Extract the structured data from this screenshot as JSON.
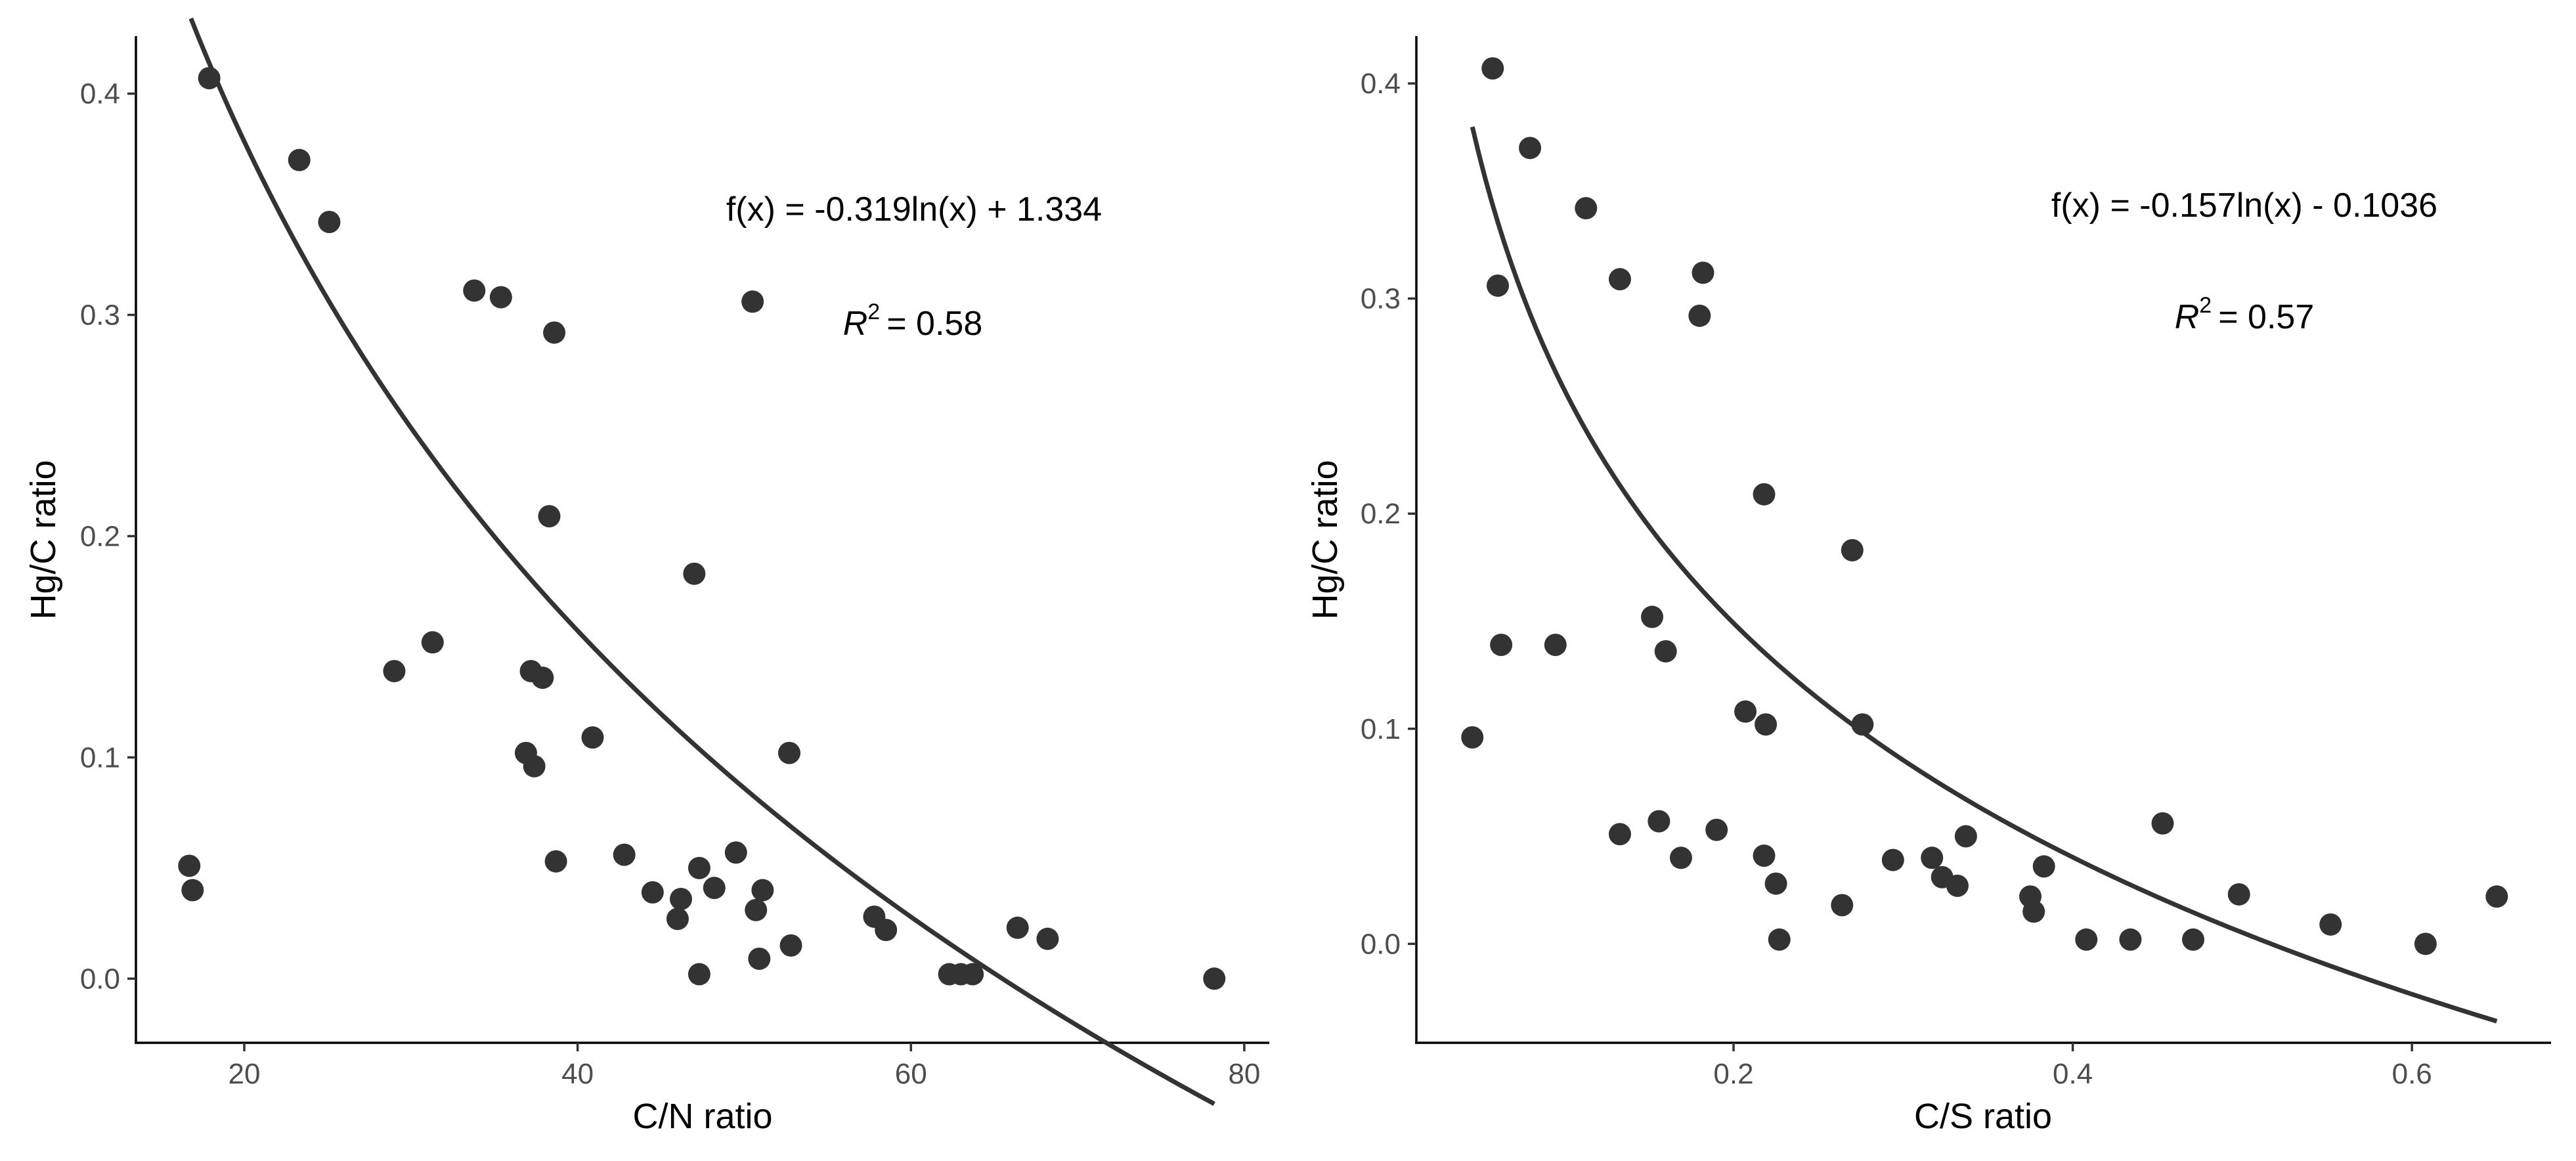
{
  "chart_data": [
    {
      "type": "scatter",
      "id": "cn",
      "xlabel": "C/N ratio",
      "ylabel": "Hg/C ratio",
      "xlim": [
        13.5,
        81.5
      ],
      "ylim": [
        -0.029,
        0.426
      ],
      "xticks": [
        20,
        40,
        60,
        80
      ],
      "yticks": [
        0.0,
        0.1,
        0.2,
        0.3,
        0.4
      ],
      "ytick_labels": [
        "0.0",
        "0.1",
        "0.2",
        "0.3",
        "0.4"
      ],
      "xtick_labels": [
        "20",
        "40",
        "60",
        "80"
      ],
      "equation": "f(x) = -0.319ln(x) + 1.334",
      "r2_label": "R",
      "r2_sup": "2",
      "r2_value": "= 0.58",
      "fit": {
        "a": -0.319,
        "b": 1.334,
        "xmin": 16.8,
        "xmax": 78.2
      },
      "points": [
        [
          17.9,
          0.407
        ],
        [
          23.3,
          0.37
        ],
        [
          25.1,
          0.342
        ],
        [
          33.8,
          0.311
        ],
        [
          35.4,
          0.308
        ],
        [
          38.6,
          0.292
        ],
        [
          50.5,
          0.306
        ],
        [
          38.3,
          0.209
        ],
        [
          47.0,
          0.183
        ],
        [
          29.0,
          0.139
        ],
        [
          31.3,
          0.152
        ],
        [
          37.2,
          0.139
        ],
        [
          37.9,
          0.136
        ],
        [
          36.9,
          0.102
        ],
        [
          37.4,
          0.096
        ],
        [
          40.9,
          0.109
        ],
        [
          52.7,
          0.102
        ],
        [
          16.7,
          0.051
        ],
        [
          16.9,
          0.04
        ],
        [
          38.7,
          0.053
        ],
        [
          42.8,
          0.056
        ],
        [
          44.5,
          0.039
        ],
        [
          46.0,
          0.027
        ],
        [
          46.2,
          0.036
        ],
        [
          47.3,
          0.05
        ],
        [
          48.2,
          0.041
        ],
        [
          49.5,
          0.057
        ],
        [
          50.7,
          0.031
        ],
        [
          51.1,
          0.04
        ],
        [
          52.8,
          0.015
        ],
        [
          47.3,
          0.002
        ],
        [
          50.9,
          0.009
        ],
        [
          57.8,
          0.028
        ],
        [
          58.5,
          0.022
        ],
        [
          62.3,
          0.002
        ],
        [
          63.0,
          0.002
        ],
        [
          63.7,
          0.002
        ],
        [
          66.4,
          0.023
        ],
        [
          68.2,
          0.018
        ],
        [
          78.2,
          0.0
        ]
      ]
    },
    {
      "type": "scatter",
      "id": "cs",
      "xlabel": "C/S ratio",
      "ylabel": "Hg/C ratio",
      "xlim": [
        0.013,
        0.682
      ],
      "ylim": [
        -0.046,
        0.422
      ],
      "xticks": [
        0.2,
        0.4,
        0.6
      ],
      "yticks": [
        0.0,
        0.1,
        0.2,
        0.3,
        0.4
      ],
      "ytick_labels": [
        "0.0",
        "0.1",
        "0.2",
        "0.3",
        "0.4"
      ],
      "xtick_labels": [
        "0.2",
        "0.4",
        "0.6"
      ],
      "equation": "f(x) = -0.157ln(x) - 0.1036",
      "r2_label": "R",
      "r2_sup": "2",
      "r2_value": "= 0.57",
      "fit": {
        "a": -0.157,
        "b": -0.1036,
        "xmin": 0.046,
        "xmax": 0.65
      },
      "points": [
        [
          0.058,
          0.407
        ],
        [
          0.08,
          0.37
        ],
        [
          0.113,
          0.342
        ],
        [
          0.061,
          0.306
        ],
        [
          0.133,
          0.309
        ],
        [
          0.182,
          0.312
        ],
        [
          0.18,
          0.292
        ],
        [
          0.218,
          0.209
        ],
        [
          0.27,
          0.183
        ],
        [
          0.063,
          0.139
        ],
        [
          0.095,
          0.139
        ],
        [
          0.152,
          0.152
        ],
        [
          0.16,
          0.136
        ],
        [
          0.046,
          0.096
        ],
        [
          0.207,
          0.108
        ],
        [
          0.219,
          0.102
        ],
        [
          0.276,
          0.102
        ],
        [
          0.133,
          0.051
        ],
        [
          0.156,
          0.057
        ],
        [
          0.169,
          0.04
        ],
        [
          0.19,
          0.053
        ],
        [
          0.218,
          0.041
        ],
        [
          0.225,
          0.028
        ],
        [
          0.227,
          0.002
        ],
        [
          0.264,
          0.018
        ],
        [
          0.294,
          0.039
        ],
        [
          0.317,
          0.04
        ],
        [
          0.323,
          0.031
        ],
        [
          0.332,
          0.027
        ],
        [
          0.337,
          0.05
        ],
        [
          0.375,
          0.022
        ],
        [
          0.377,
          0.015
        ],
        [
          0.383,
          0.036
        ],
        [
          0.408,
          0.002
        ],
        [
          0.434,
          0.002
        ],
        [
          0.453,
          0.056
        ],
        [
          0.471,
          0.002
        ],
        [
          0.498,
          0.023
        ],
        [
          0.552,
          0.009
        ],
        [
          0.608,
          0.0
        ],
        [
          0.65,
          0.022
        ]
      ]
    }
  ]
}
